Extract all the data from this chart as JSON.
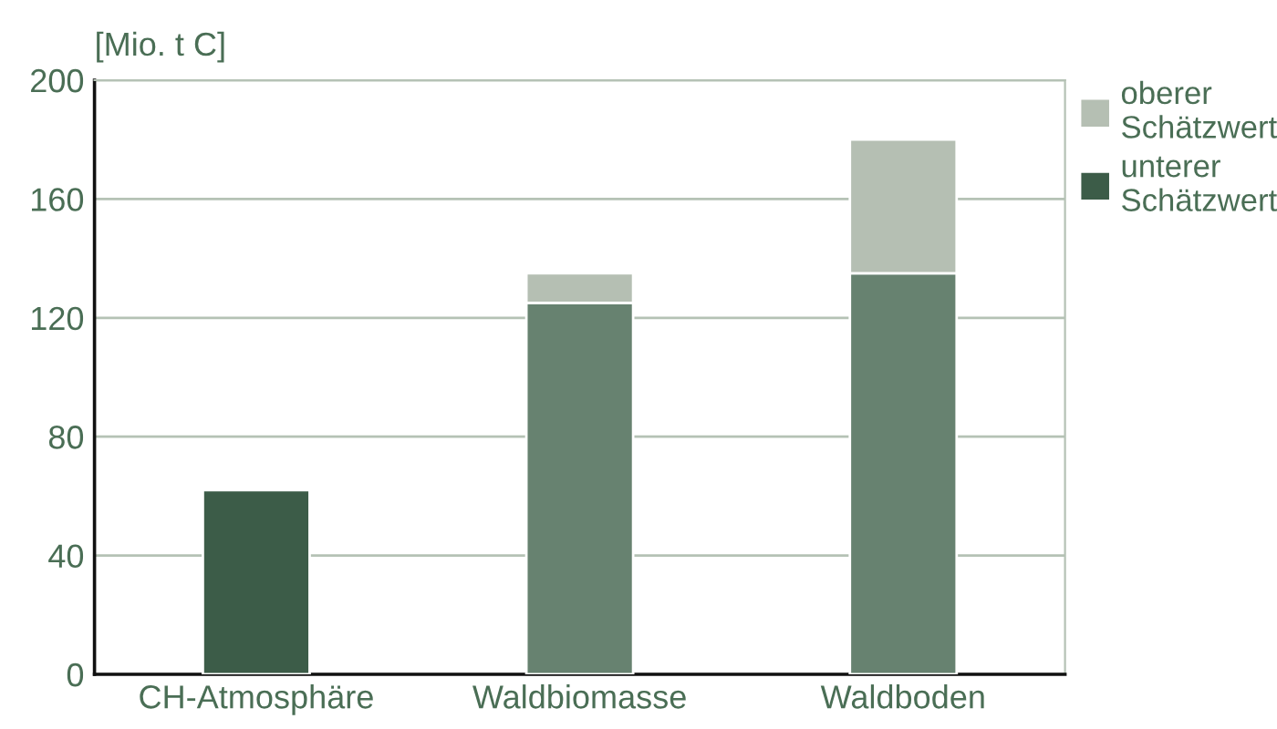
{
  "chart_data": {
    "type": "bar",
    "stacked": true,
    "ylabel": "[Mio. t C]",
    "categories": [
      "CH-Atmosphäre",
      "Waldbiomasse",
      "Waldboden"
    ],
    "series": [
      {
        "name": "unterer Schätzwert",
        "color": "#3c5c48",
        "colors": [
          "#3c5c48",
          "#678270",
          "#678270"
        ],
        "values": [
          62,
          125,
          135
        ]
      },
      {
        "name": "oberer Schätzwert",
        "color": "#b5bfb3",
        "values": [
          null,
          10,
          45
        ]
      }
    ],
    "ylim": [
      0,
      200
    ],
    "yticks": [
      0,
      40,
      80,
      120,
      160,
      200
    ],
    "grid": "y",
    "legend": "top right"
  }
}
